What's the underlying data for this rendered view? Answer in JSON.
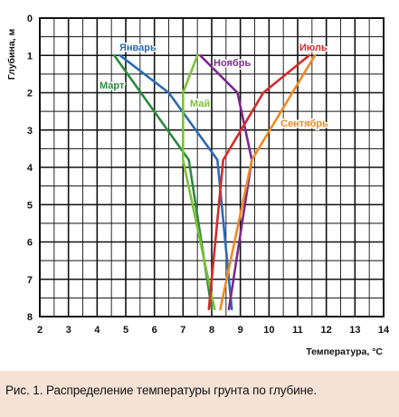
{
  "caption": "Рис. 1. Распределение температуры грунта по глубине.",
  "chart_data": {
    "type": "line",
    "title": "",
    "xlabel": "Температура, °С",
    "ylabel": "Глубина, м",
    "xlim": [
      2,
      14
    ],
    "ylim": [
      0,
      8
    ],
    "y_inverted": true,
    "x_ticks": [
      2,
      3,
      4,
      5,
      6,
      7,
      8,
      9,
      10,
      11,
      12,
      13,
      14
    ],
    "y_ticks": [
      0,
      1,
      2,
      3,
      4,
      5,
      6,
      7,
      8
    ],
    "grid": true,
    "legend": "inline labels",
    "series": [
      {
        "name": "Январь",
        "color": "#2a6bb3",
        "points": [
          [
            4.8,
            1.0
          ],
          [
            6.5,
            2.0
          ],
          [
            8.2,
            3.8
          ],
          [
            8.7,
            7.8
          ]
        ]
      },
      {
        "name": "Март",
        "color": "#2d8a3e",
        "points": [
          [
            4.6,
            1.0
          ],
          [
            7.2,
            3.8
          ],
          [
            8.0,
            7.8
          ]
        ]
      },
      {
        "name": "Май",
        "color": "#7fbf3a",
        "points": [
          [
            7.5,
            1.0
          ],
          [
            7.0,
            2.0
          ],
          [
            7.0,
            3.8
          ],
          [
            8.1,
            7.8
          ]
        ]
      },
      {
        "name": "Ноябрь",
        "color": "#7a2a8c",
        "points": [
          [
            7.6,
            1.0
          ],
          [
            8.9,
            2.0
          ],
          [
            9.4,
            3.8
          ],
          [
            8.6,
            7.8
          ]
        ]
      },
      {
        "name": "Июль",
        "color": "#d62a2a",
        "points": [
          [
            11.4,
            1.0
          ],
          [
            9.8,
            2.0
          ],
          [
            8.4,
            3.8
          ],
          [
            7.9,
            7.8
          ]
        ]
      },
      {
        "name": "Сентябрь",
        "color": "#f08a24",
        "points": [
          [
            11.6,
            1.0
          ],
          [
            9.4,
            3.8
          ],
          [
            8.3,
            7.8
          ]
        ]
      }
    ]
  }
}
